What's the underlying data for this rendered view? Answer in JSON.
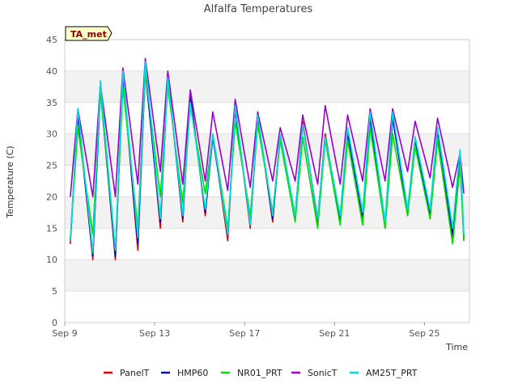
{
  "chart_data": {
    "type": "line",
    "title": "Alfalfa Temperatures",
    "xlabel": "Time",
    "ylabel": "Temperature (C)",
    "badge": "TA_met",
    "ylim": [
      0,
      45
    ],
    "xlim": [
      "2023-09-09",
      "2023-09-27"
    ],
    "yticks": [
      0,
      5,
      10,
      15,
      20,
      25,
      30,
      35,
      40,
      45
    ],
    "xticks": [
      {
        "date": "2023-09-09",
        "label": "Sep 9"
      },
      {
        "date": "2023-09-13",
        "label": "Sep 13"
      },
      {
        "date": "2023-09-17",
        "label": "Sep 17"
      },
      {
        "date": "2023-09-21",
        "label": "Sep 21"
      },
      {
        "date": "2023-09-25",
        "label": "Sep 25"
      }
    ],
    "grid": true,
    "legend_position": "bottom",
    "x": [
      "2023-09-09 06:00",
      "2023-09-09 14:00",
      "2023-09-10 06:00",
      "2023-09-10 14:00",
      "2023-09-11 06:00",
      "2023-09-11 14:00",
      "2023-09-12 06:00",
      "2023-09-12 14:00",
      "2023-09-13 06:00",
      "2023-09-13 14:00",
      "2023-09-14 06:00",
      "2023-09-14 14:00",
      "2023-09-15 06:00",
      "2023-09-15 14:00",
      "2023-09-16 06:00",
      "2023-09-16 14:00",
      "2023-09-17 06:00",
      "2023-09-17 14:00",
      "2023-09-18 06:00",
      "2023-09-18 14:00",
      "2023-09-19 06:00",
      "2023-09-19 14:00",
      "2023-09-20 06:00",
      "2023-09-20 14:00",
      "2023-09-21 06:00",
      "2023-09-21 14:00",
      "2023-09-22 06:00",
      "2023-09-22 14:00",
      "2023-09-23 06:00",
      "2023-09-23 14:00",
      "2023-09-24 06:00",
      "2023-09-24 14:00",
      "2023-09-25 06:00",
      "2023-09-25 14:00",
      "2023-09-26 06:00",
      "2023-09-26 14:00",
      "2023-09-26 18:00"
    ],
    "series": [
      {
        "name": "PanelT",
        "color": "#dd0000",
        "values": [
          12.5,
          33.5,
          10.0,
          37.5,
          10.0,
          39.5,
          11.5,
          41.0,
          15.0,
          39.5,
          16.0,
          36.5,
          17.0,
          30.0,
          13.0,
          34.5,
          15.0,
          33.0,
          16.0,
          30.0,
          16.5,
          32.0,
          16.0,
          30.0,
          16.0,
          30.5,
          16.5,
          33.0,
          15.0,
          33.0,
          17.0,
          29.5,
          16.5,
          31.0,
          13.5,
          27.0,
          13.0
        ]
      },
      {
        "name": "HMP60",
        "color": "#0000cc",
        "values": [
          13.0,
          33.0,
          10.5,
          37.0,
          10.5,
          39.0,
          12.5,
          40.0,
          16.0,
          39.0,
          16.5,
          36.0,
          17.5,
          29.5,
          14.0,
          34.0,
          15.5,
          32.5,
          16.5,
          29.5,
          17.0,
          31.5,
          16.5,
          29.5,
          16.5,
          30.0,
          17.0,
          32.5,
          15.5,
          32.5,
          17.5,
          29.0,
          17.0,
          30.5,
          14.0,
          26.5,
          13.5
        ]
      },
      {
        "name": "NR01_PRT",
        "color": "#00dd00",
        "values": [
          13.5,
          31.0,
          14.0,
          37.0,
          11.5,
          37.5,
          15.0,
          40.0,
          20.0,
          37.5,
          19.0,
          34.5,
          20.5,
          30.0,
          15.0,
          32.0,
          17.0,
          31.5,
          17.5,
          29.0,
          16.0,
          29.5,
          15.0,
          29.0,
          15.5,
          29.0,
          15.5,
          31.0,
          15.0,
          30.0,
          17.0,
          28.0,
          16.5,
          29.0,
          12.5,
          25.0,
          13.0
        ]
      },
      {
        "name": "SonicT",
        "color": "#9900cc",
        "values": [
          20.0,
          34.0,
          20.0,
          38.0,
          20.0,
          40.5,
          22.0,
          42.0,
          24.0,
          40.0,
          22.0,
          37.0,
          22.5,
          33.5,
          21.0,
          35.5,
          21.5,
          33.5,
          22.5,
          31.0,
          22.5,
          33.0,
          22.0,
          34.5,
          22.0,
          33.0,
          22.5,
          34.0,
          22.5,
          34.0,
          24.0,
          32.0,
          23.0,
          32.5,
          21.5,
          27.0,
          20.5
        ]
      },
      {
        "name": "AM25T_PRT",
        "color": "#00dddd",
        "values": [
          13.0,
          34.0,
          11.0,
          38.5,
          11.5,
          40.0,
          13.5,
          41.5,
          16.5,
          39.0,
          17.0,
          35.0,
          18.0,
          30.0,
          14.0,
          34.5,
          15.5,
          33.0,
          17.0,
          30.0,
          17.0,
          31.5,
          16.5,
          29.5,
          17.0,
          31.0,
          17.5,
          33.5,
          16.0,
          33.5,
          18.0,
          29.5,
          18.0,
          31.0,
          15.0,
          27.5,
          14.0
        ]
      }
    ]
  }
}
